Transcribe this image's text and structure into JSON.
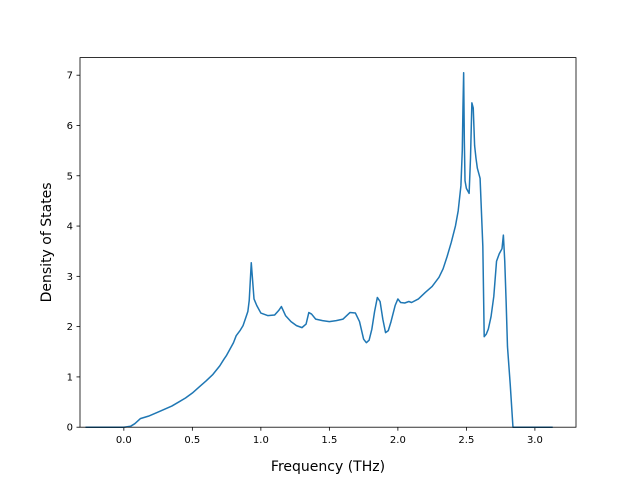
{
  "chart_data": {
    "type": "line",
    "title": "",
    "xlabel": "Frequency (THz)",
    "ylabel": "Density of States",
    "xlim": [
      -0.32,
      3.3
    ],
    "ylim": [
      0,
      7.35
    ],
    "xticks": [
      0.0,
      0.5,
      1.0,
      1.5,
      2.0,
      2.5,
      3.0
    ],
    "xtick_labels": [
      "0.0",
      "0.5",
      "1.0",
      "1.5",
      "2.0",
      "2.5",
      "3.0"
    ],
    "yticks": [
      0,
      1,
      2,
      3,
      4,
      5,
      6,
      7
    ],
    "ytick_labels": [
      "0",
      "1",
      "2",
      "3",
      "4",
      "5",
      "6",
      "7"
    ],
    "grid": false,
    "color": "#1f77b4",
    "series": [
      {
        "x": [
          -0.28,
          0.0,
          0.05,
          0.08,
          0.12,
          0.18,
          0.25,
          0.3,
          0.35,
          0.4,
          0.45,
          0.5,
          0.55,
          0.6,
          0.65,
          0.7,
          0.73,
          0.75,
          0.8,
          0.82,
          0.85,
          0.87,
          0.89,
          0.905,
          0.915,
          0.93,
          0.95,
          0.97,
          1.0,
          1.05,
          1.1,
          1.13,
          1.15,
          1.18,
          1.22,
          1.26,
          1.3,
          1.33,
          1.35,
          1.37,
          1.4,
          1.45,
          1.5,
          1.55,
          1.6,
          1.65,
          1.69,
          1.72,
          1.75,
          1.77,
          1.79,
          1.81,
          1.83,
          1.85,
          1.87,
          1.89,
          1.91,
          1.93,
          1.95,
          1.98,
          2.0,
          2.02,
          2.05,
          2.08,
          2.1,
          2.15,
          2.2,
          2.25,
          2.3,
          2.33,
          2.36,
          2.39,
          2.42,
          2.44,
          2.46,
          2.47,
          2.475,
          2.48,
          2.485,
          2.49,
          2.5,
          2.52,
          2.53,
          2.54,
          2.55,
          2.56,
          2.57,
          2.58,
          2.6,
          2.62,
          2.63,
          2.645,
          2.66,
          2.68,
          2.7,
          2.72,
          2.74,
          2.76,
          2.77,
          2.78,
          2.79,
          2.8,
          2.82,
          2.84,
          2.855,
          2.9,
          3.0,
          3.1,
          3.13
        ],
        "y": [
          0,
          0,
          0.02,
          0.07,
          0.17,
          0.22,
          0.3,
          0.36,
          0.42,
          0.5,
          0.58,
          0.68,
          0.8,
          0.92,
          1.05,
          1.22,
          1.35,
          1.43,
          1.68,
          1.82,
          1.93,
          2.02,
          2.18,
          2.3,
          2.52,
          3.27,
          2.55,
          2.42,
          2.27,
          2.22,
          2.23,
          2.32,
          2.4,
          2.22,
          2.1,
          2.02,
          1.98,
          2.05,
          2.28,
          2.25,
          2.15,
          2.12,
          2.1,
          2.12,
          2.15,
          2.28,
          2.27,
          2.1,
          1.75,
          1.68,
          1.73,
          1.95,
          2.3,
          2.58,
          2.5,
          2.15,
          1.88,
          1.92,
          2.1,
          2.42,
          2.55,
          2.48,
          2.47,
          2.5,
          2.48,
          2.55,
          2.68,
          2.8,
          2.98,
          3.15,
          3.4,
          3.68,
          4.0,
          4.3,
          4.8,
          5.5,
          6.35,
          7.05,
          5.7,
          4.9,
          4.75,
          4.65,
          5.35,
          6.45,
          6.35,
          5.6,
          5.35,
          5.15,
          4.95,
          3.6,
          1.8,
          1.85,
          1.95,
          2.2,
          2.6,
          3.3,
          3.45,
          3.55,
          3.82,
          3.3,
          2.5,
          1.6,
          0.85,
          0,
          0,
          0,
          0,
          0,
          0
        ]
      }
    ]
  }
}
